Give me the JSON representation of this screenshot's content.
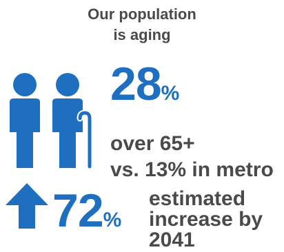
{
  "title": {
    "line1": "Our population",
    "line2": "is aging"
  },
  "colors": {
    "accent": "#1f6fc1",
    "text": "#4a4a4a"
  },
  "icons": {
    "people": "two-people-icon",
    "arrow": "arrow-up-icon"
  },
  "stat_over65": {
    "value": "28",
    "unit": "%",
    "line1": "over 65+",
    "line2": "vs. 13% in metro"
  },
  "stat_increase": {
    "value": "72",
    "unit": "%",
    "line1": "estimated",
    "line2": "increase by",
    "line3": "2041"
  }
}
